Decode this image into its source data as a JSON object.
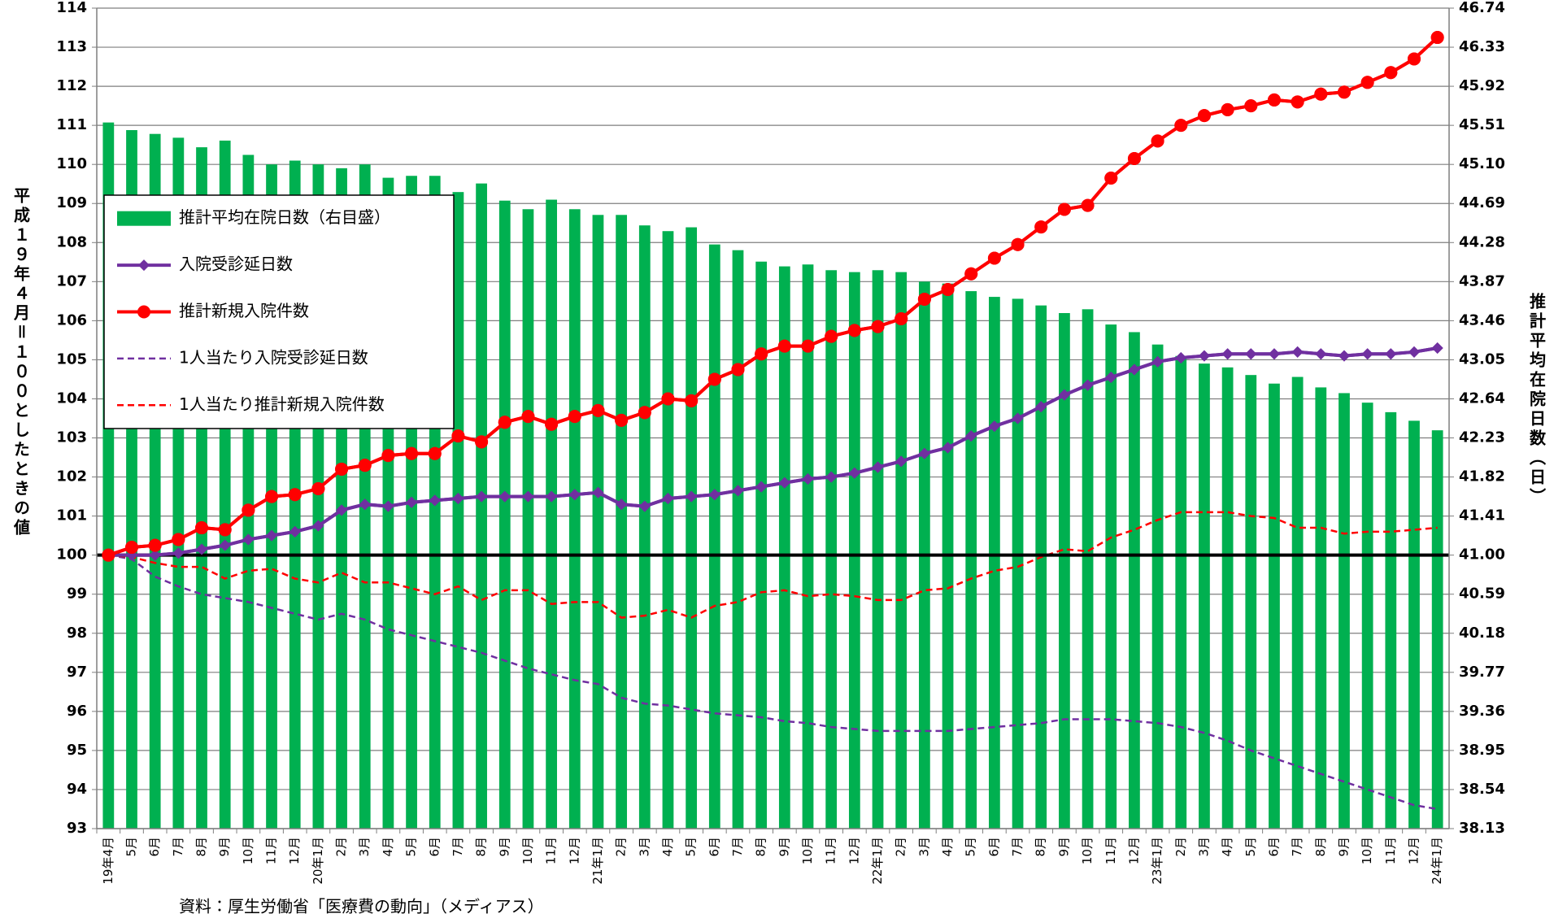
{
  "chart_data": {
    "type": "combo",
    "y_label": "平成１９年４月＝１００としたときの値",
    "y2_label": "推計平均在院日数（日）",
    "note": "資料：厚生労働省「医療費の動向」（メディアス）",
    "categories": [
      "19年4月",
      "5月",
      "6月",
      "7月",
      "8月",
      "9月",
      "10月",
      "11月",
      "12月",
      "20年1月",
      "2月",
      "3月",
      "4月",
      "5月",
      "6月",
      "7月",
      "8月",
      "9月",
      "10月",
      "11月",
      "12月",
      "21年1月",
      "2月",
      "3月",
      "4月",
      "5月",
      "6月",
      "7月",
      "8月",
      "9月",
      "10月",
      "11月",
      "12月",
      "22年1月",
      "2月",
      "3月",
      "4月",
      "5月",
      "6月",
      "7月",
      "8月",
      "9月",
      "10月",
      "11月",
      "12月",
      "23年1月",
      "2月",
      "3月",
      "4月",
      "5月",
      "6月",
      "7月",
      "8月",
      "9月",
      "10月",
      "11月",
      "12月",
      "24年1月"
    ],
    "ylim": [
      93,
      114
    ],
    "yticks": [
      93,
      94,
      95,
      96,
      97,
      98,
      99,
      100,
      101,
      102,
      103,
      104,
      105,
      106,
      107,
      108,
      109,
      110,
      111,
      112,
      113,
      114
    ],
    "y2lim": [
      38.13,
      46.74
    ],
    "y2ticks": [
      38.13,
      38.54,
      38.95,
      39.36,
      39.77,
      40.18,
      40.59,
      {
        "value": 41,
        "label": "41.00"
      },
      41.41,
      41.82,
      42.23,
      42.64,
      43.05,
      43.46,
      43.87,
      44.28,
      44.69,
      {
        "value": 45.1,
        "label": "45.10"
      },
      45.51,
      45.92,
      46.33,
      46.74
    ],
    "grid": true,
    "baseline": 100,
    "legend": "upper left",
    "series": [
      {
        "name": "推計平均在院日数（右目盛）",
        "type": "bar",
        "axis": "y2",
        "color": "#00b050",
        "values": [
          45.54,
          45.46,
          45.42,
          45.38,
          45.28,
          45.35,
          45.2,
          45.1,
          45.14,
          45.1,
          45.06,
          45.1,
          44.96,
          44.98,
          44.98,
          44.81,
          44.9,
          44.72,
          44.63,
          44.73,
          44.63,
          44.57,
          44.57,
          44.46,
          44.4,
          44.44,
          44.26,
          44.2,
          44.08,
          44.03,
          44.05,
          43.99,
          43.97,
          43.99,
          43.97,
          43.87,
          43.85,
          43.77,
          43.71,
          43.69,
          43.62,
          43.54,
          43.58,
          43.42,
          43.34,
          43.21,
          43.09,
          43.01,
          42.97,
          42.89,
          42.8,
          42.87,
          42.76,
          42.7,
          42.6,
          42.5,
          42.41,
          42.31
        ]
      },
      {
        "name": "入院受診延日数",
        "type": "line",
        "color": "#7030a0",
        "marker": "diamond",
        "dash": false,
        "values": [
          100,
          100,
          100,
          100.05,
          100.15,
          100.25,
          100.4,
          100.5,
          100.6,
          100.75,
          101.15,
          101.3,
          101.25,
          101.35,
          101.4,
          101.45,
          101.5,
          101.5,
          101.5,
          101.5,
          101.55,
          101.6,
          101.3,
          101.25,
          101.45,
          101.5,
          101.55,
          101.65,
          101.75,
          101.85,
          101.95,
          102,
          102.1,
          102.25,
          102.4,
          102.6,
          102.75,
          103.05,
          103.3,
          103.5,
          103.8,
          104.1,
          104.35,
          104.55,
          104.75,
          104.95,
          105.05,
          105.1,
          105.15,
          105.15,
          105.15,
          105.2,
          105.15,
          105.1,
          105.15,
          105.15,
          105.2,
          105.3
        ]
      },
      {
        "name": "推計新規入院件数",
        "type": "line",
        "color": "#ff0000",
        "marker": "circle",
        "dash": false,
        "values": [
          100,
          100.2,
          100.25,
          100.4,
          100.7,
          100.65,
          101.15,
          101.5,
          101.55,
          101.7,
          102.2,
          102.3,
          102.55,
          102.6,
          102.6,
          103.05,
          102.9,
          103.4,
          103.55,
          103.35,
          103.55,
          103.7,
          103.45,
          103.65,
          104,
          103.95,
          104.5,
          104.75,
          105.15,
          105.35,
          105.35,
          105.6,
          105.75,
          105.85,
          106.05,
          106.55,
          106.8,
          107.2,
          107.6,
          107.95,
          108.4,
          108.85,
          108.95,
          109.65,
          110.15,
          110.6,
          111,
          111.25,
          111.4,
          111.5,
          111.65,
          111.6,
          111.8,
          111.85,
          112.1,
          112.35,
          112.7,
          113.25
        ]
      },
      {
        "name": "1人当たり入院受診延日数",
        "type": "line",
        "color": "#7030a0",
        "marker": "none",
        "dash": true,
        "values": [
          100,
          99.9,
          99.45,
          99.2,
          99,
          98.9,
          98.8,
          98.65,
          98.5,
          98.35,
          98.5,
          98.35,
          98.1,
          97.95,
          97.8,
          97.65,
          97.5,
          97.3,
          97.1,
          96.95,
          96.8,
          96.7,
          96.35,
          96.2,
          96.15,
          96.05,
          95.95,
          95.9,
          95.85,
          95.75,
          95.7,
          95.6,
          95.55,
          95.5,
          95.5,
          95.5,
          95.5,
          95.55,
          95.6,
          95.65,
          95.7,
          95.8,
          95.8,
          95.8,
          95.75,
          95.7,
          95.6,
          95.45,
          95.25,
          95,
          94.8,
          94.6,
          94.4,
          94.2,
          94,
          93.8,
          93.6,
          93.5
        ]
      },
      {
        "name": "1人当たり推計新規入院件数",
        "type": "line",
        "color": "#ff0000",
        "marker": "none",
        "dash": true,
        "values": [
          100,
          99.95,
          99.8,
          99.7,
          99.7,
          99.4,
          99.6,
          99.65,
          99.4,
          99.3,
          99.55,
          99.3,
          99.3,
          99.15,
          99,
          99.2,
          98.85,
          99.1,
          99.1,
          98.75,
          98.8,
          98.8,
          98.4,
          98.45,
          98.6,
          98.4,
          98.7,
          98.8,
          99.05,
          99.1,
          98.95,
          99,
          98.95,
          98.85,
          98.85,
          99.1,
          99.15,
          99.4,
          99.6,
          99.7,
          99.95,
          100.15,
          100.1,
          100.45,
          100.65,
          100.9,
          101.1,
          101.1,
          101.1,
          101,
          100.95,
          100.7,
          100.7,
          100.55,
          100.6,
          100.6,
          100.65,
          100.7
        ]
      }
    ]
  }
}
